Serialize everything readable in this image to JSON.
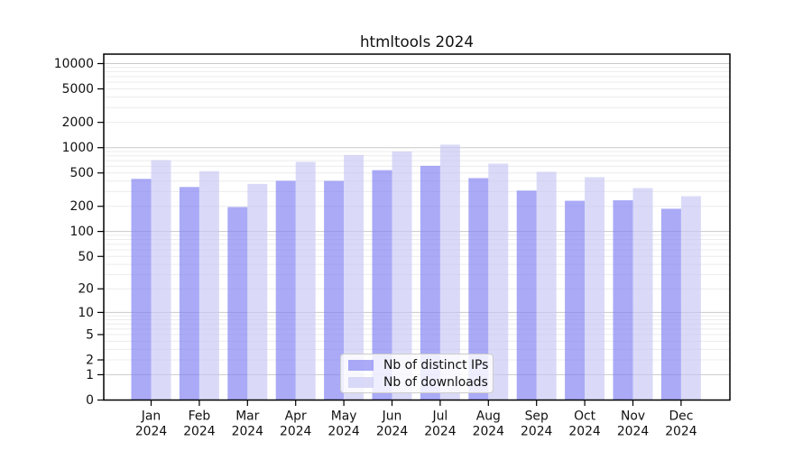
{
  "chart_data": {
    "type": "bar",
    "title": "htmltools 2024",
    "categories": [
      {
        "month": "Jan",
        "year": "2024"
      },
      {
        "month": "Feb",
        "year": "2024"
      },
      {
        "month": "Mar",
        "year": "2024"
      },
      {
        "month": "Apr",
        "year": "2024"
      },
      {
        "month": "May",
        "year": "2024"
      },
      {
        "month": "Jun",
        "year": "2024"
      },
      {
        "month": "Jul",
        "year": "2024"
      },
      {
        "month": "Aug",
        "year": "2024"
      },
      {
        "month": "Sep",
        "year": "2024"
      },
      {
        "month": "Oct",
        "year": "2024"
      },
      {
        "month": "Nov",
        "year": "2024"
      },
      {
        "month": "Dec",
        "year": "2024"
      }
    ],
    "series": [
      {
        "name": "Nb of distinct IPs",
        "values": [
          425,
          340,
          196,
          403,
          402,
          540,
          608,
          434,
          308,
          233,
          236,
          187
        ],
        "fill": "rgba(124,124,242,0.65)"
      },
      {
        "name": "Nb of downloads",
        "values": [
          710,
          525,
          370,
          678,
          820,
          900,
          1085,
          645,
          516,
          445,
          330,
          264
        ],
        "fill": "rgba(198,198,244,0.65)"
      }
    ],
    "y_axis": {
      "scale": "log10(value+1)",
      "ticks": [
        0,
        1,
        2,
        5,
        10,
        20,
        50,
        100,
        200,
        500,
        1000,
        2000,
        5000,
        10000
      ],
      "top_value": 12900
    },
    "legend": {
      "position": "bottom-center"
    },
    "grid": {
      "major_color": "#c9c9c9",
      "minor_color": "#ececec"
    },
    "spine_color": "#000000",
    "tick_label_color": "#111111"
  }
}
